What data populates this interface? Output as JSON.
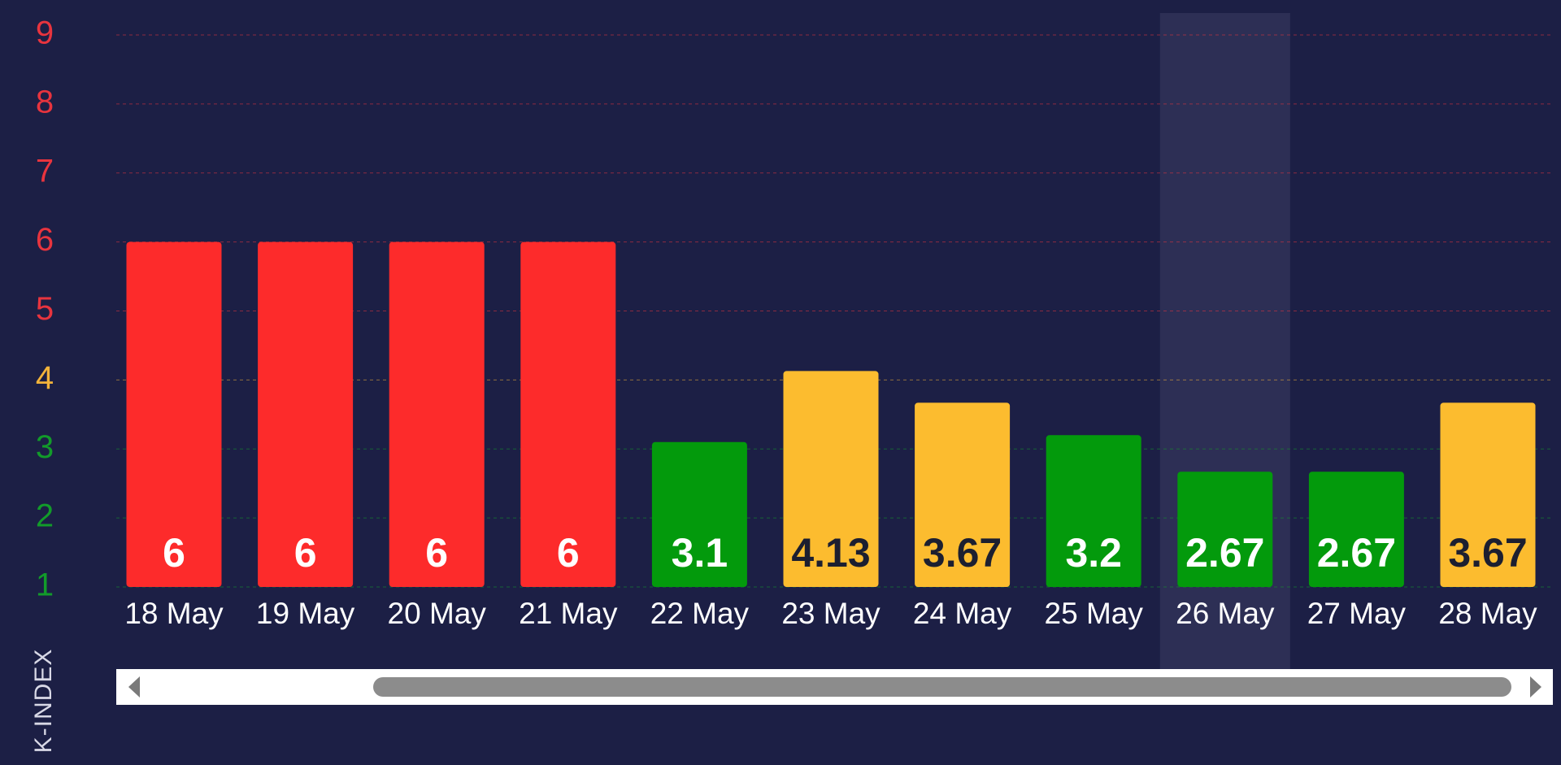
{
  "chart_data": {
    "type": "bar",
    "y_axis_title": "K-INDEX",
    "categories": [
      "18 May",
      "19 May",
      "20 May",
      "21 May",
      "22 May",
      "23 May",
      "24 May",
      "25 May",
      "26 May",
      "27 May",
      "28 May"
    ],
    "values": [
      6,
      6,
      6,
      6,
      3.1,
      4.13,
      3.67,
      3.2,
      2.67,
      2.67,
      3.67
    ],
    "colors": [
      "#fd2b2b",
      "#fd2b2b",
      "#fd2b2b",
      "#fd2b2b",
      "#039a0c",
      "#fcbc2f",
      "#fcbc2f",
      "#039a0c",
      "#039a0c",
      "#039a0c",
      "#fcbc2f"
    ],
    "label_colors": [
      "#ffffff",
      "#ffffff",
      "#ffffff",
      "#ffffff",
      "#ffffff",
      "#1c1f30",
      "#1c1f30",
      "#ffffff",
      "#ffffff",
      "#ffffff",
      "#1c1f30"
    ],
    "ylim": [
      1,
      9
    ],
    "yticks": [
      1,
      2,
      3,
      4,
      5,
      6,
      7,
      8,
      9
    ],
    "ytick_colors": [
      "#129b2a",
      "#129b2a",
      "#129b2a",
      "#f2b33a",
      "#e8343e",
      "#e8343e",
      "#e8343e",
      "#e8343e",
      "#e8343e"
    ],
    "grid": true,
    "highlight_index": 8
  }
}
